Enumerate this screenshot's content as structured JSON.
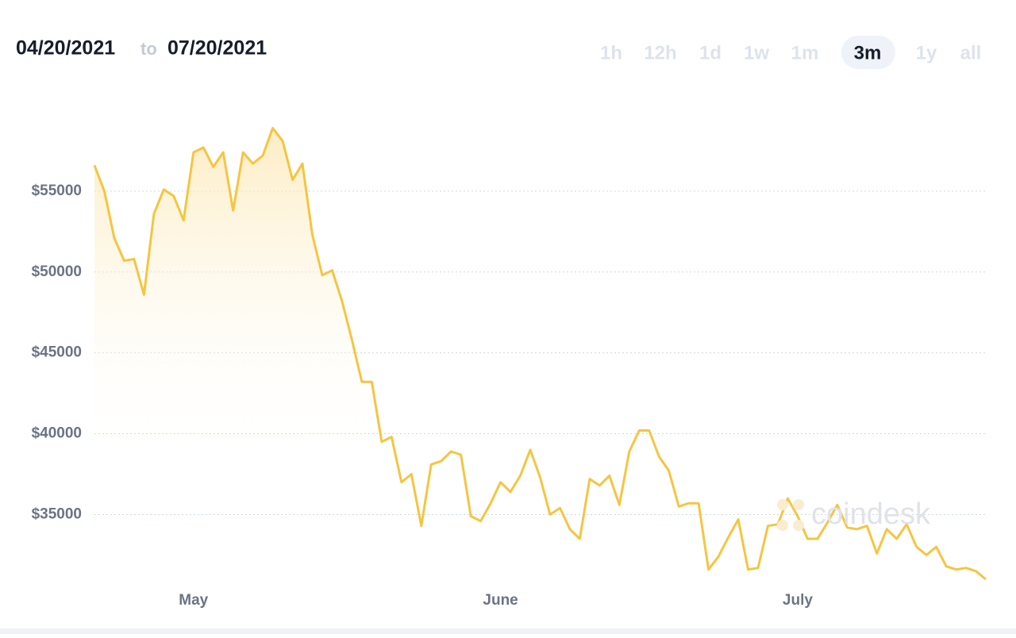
{
  "chart_data": {
    "type": "line",
    "date_from": "04/20/2021",
    "date_separator": "to",
    "date_to": "07/20/2021",
    "range_buttons": [
      "1h",
      "12h",
      "1d",
      "1w",
      "1m",
      "3m",
      "1y",
      "all"
    ],
    "selected_range": "3m",
    "watermark": "coindesk",
    "color": "#f5c542",
    "grid": true,
    "values": [
      56600,
      55000,
      52100,
      50700,
      50800,
      48600,
      53600,
      55100,
      54700,
      53200,
      57400,
      57700,
      56500,
      57400,
      53800,
      57400,
      56700,
      57200,
      58900,
      58100,
      55700,
      56700,
      52300,
      49800,
      50100,
      48200,
      45800,
      43200,
      43200,
      39500,
      39800,
      37000,
      37500,
      34300,
      38100,
      38300,
      38900,
      38700,
      34900,
      34600,
      35700,
      37000,
      36400,
      37400,
      39000,
      37300,
      35000,
      35400,
      34100,
      33500,
      37200,
      36800,
      37400,
      35600,
      38900,
      40200,
      40200,
      38600,
      37700,
      35500,
      35700,
      35700,
      31600,
      32400,
      33600,
      34700,
      31600,
      31700,
      34300,
      34400,
      36000,
      34900,
      33500,
      33500,
      34500,
      35600,
      34200,
      34100,
      34300,
      32600,
      34100,
      33500,
      34400,
      33000,
      32500,
      33000,
      31800,
      31600,
      31700,
      31500,
      31000
    ],
    "xticks": [
      {
        "value": 10,
        "label": "May"
      },
      {
        "value": 41,
        "label": "June"
      },
      {
        "value": 71,
        "label": "July"
      }
    ],
    "ylim": [
      30900,
      60500
    ],
    "yticks": [
      {
        "value": 35000,
        "label": "$35000"
      },
      {
        "value": 40000,
        "label": "$40000"
      },
      {
        "value": 45000,
        "label": "$45000"
      },
      {
        "value": 50000,
        "label": "$50000"
      },
      {
        "value": 55000,
        "label": "$55000"
      }
    ]
  }
}
